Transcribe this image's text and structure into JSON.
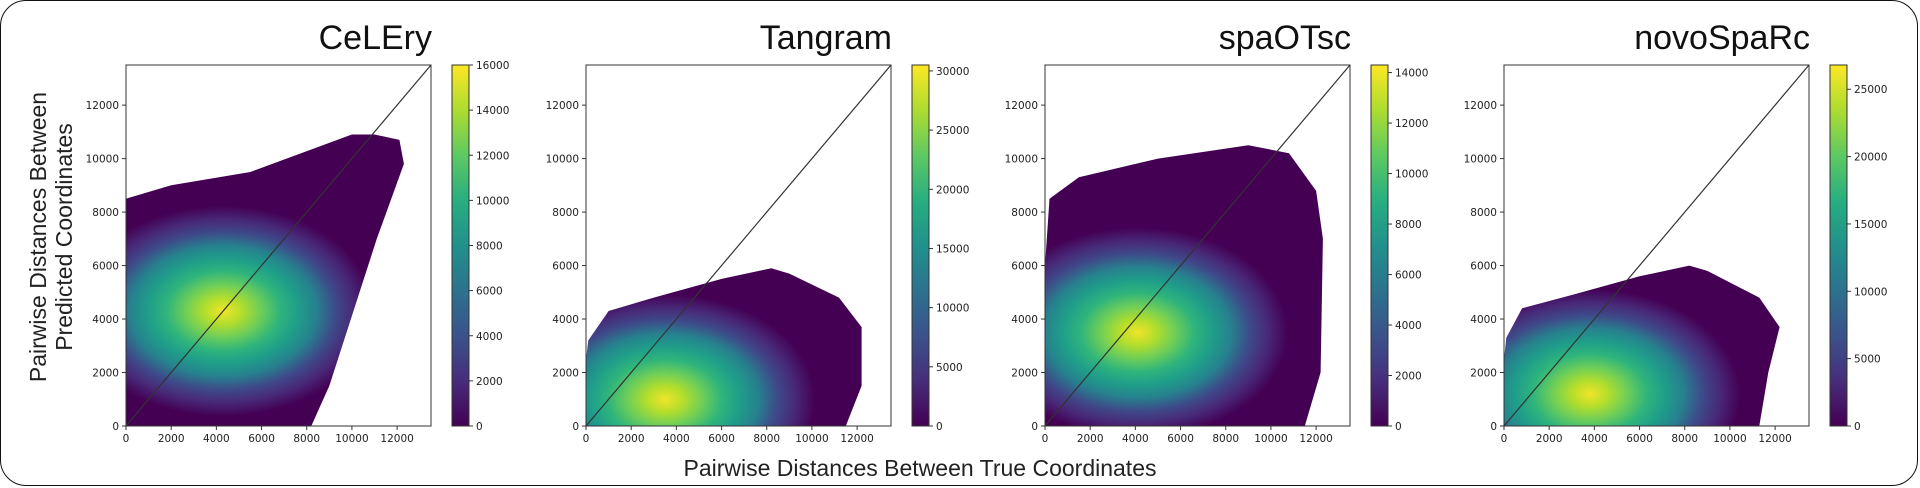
{
  "figure": {
    "xlabel": "Pairwise Distances Between True Coordinates",
    "ylabel_line1": "Pairwise Distances Between",
    "ylabel_line2": "Predicted Coordinates"
  },
  "chart_data": [
    {
      "type": "heatmap",
      "title": "CeLEry",
      "xlim": [
        0,
        13500
      ],
      "ylim": [
        0,
        13500
      ],
      "xticks": [
        0,
        2000,
        4000,
        6000,
        8000,
        10000,
        12000
      ],
      "yticks": [
        0,
        2000,
        4000,
        6000,
        8000,
        10000,
        12000
      ],
      "identity_line": true,
      "colorbar": {
        "min": 0,
        "max": 16000,
        "ticks": [
          0,
          2000,
          4000,
          6000,
          8000,
          10000,
          12000,
          14000,
          16000
        ]
      },
      "density_peak": {
        "x": 4300,
        "y": 4300
      },
      "support_outline": [
        [
          0,
          0
        ],
        [
          500,
          0
        ],
        [
          8200,
          0
        ],
        [
          9000,
          1500
        ],
        [
          11100,
          7000
        ],
        [
          12300,
          9800
        ],
        [
          12100,
          10700
        ],
        [
          11000,
          10900
        ],
        [
          10000,
          10900
        ],
        [
          5500,
          9500
        ],
        [
          2000,
          9000
        ],
        [
          0,
          8500
        ],
        [
          0,
          4500
        ]
      ]
    },
    {
      "type": "heatmap",
      "title": "Tangram",
      "xlim": [
        0,
        13500
      ],
      "ylim": [
        0,
        13500
      ],
      "xticks": [
        0,
        2000,
        4000,
        6000,
        8000,
        10000,
        12000
      ],
      "yticks": [
        0,
        2000,
        4000,
        6000,
        8000,
        10000,
        12000
      ],
      "identity_line": true,
      "colorbar": {
        "min": 0,
        "max": 30500,
        "ticks": [
          0,
          5000,
          10000,
          15000,
          20000,
          25000,
          30000
        ]
      },
      "density_peak": {
        "x": 3500,
        "y": 1000
      },
      "support_outline": [
        [
          0,
          0
        ],
        [
          11500,
          0
        ],
        [
          12200,
          1500
        ],
        [
          12200,
          3700
        ],
        [
          11200,
          4800
        ],
        [
          9000,
          5700
        ],
        [
          8200,
          5900
        ],
        [
          6000,
          5500
        ],
        [
          3000,
          4800
        ],
        [
          1000,
          4300
        ],
        [
          100,
          3200
        ],
        [
          0,
          2500
        ]
      ]
    },
    {
      "type": "heatmap",
      "title": "spaOTsc",
      "xlim": [
        0,
        13500
      ],
      "ylim": [
        0,
        13500
      ],
      "xticks": [
        0,
        2000,
        4000,
        6000,
        8000,
        10000,
        12000
      ],
      "yticks": [
        0,
        2000,
        4000,
        6000,
        8000,
        10000,
        12000
      ],
      "identity_line": true,
      "colorbar": {
        "min": 0,
        "max": 14300,
        "ticks": [
          0,
          2000,
          4000,
          6000,
          8000,
          10000,
          12000,
          14000
        ]
      },
      "density_peak": {
        "x": 4100,
        "y": 3500
      },
      "support_outline": [
        [
          0,
          0
        ],
        [
          11500,
          0
        ],
        [
          12200,
          2000
        ],
        [
          12300,
          7000
        ],
        [
          12000,
          8800
        ],
        [
          10800,
          10200
        ],
        [
          9000,
          10500
        ],
        [
          5000,
          10000
        ],
        [
          1500,
          9300
        ],
        [
          200,
          8500
        ],
        [
          0,
          6000
        ]
      ]
    },
    {
      "type": "heatmap",
      "title": "novoSpaRc",
      "xlim": [
        0,
        13500
      ],
      "ylim": [
        0,
        13500
      ],
      "xticks": [
        0,
        2000,
        4000,
        6000,
        8000,
        10000,
        12000
      ],
      "yticks": [
        0,
        2000,
        4000,
        6000,
        8000,
        10000,
        12000
      ],
      "identity_line": true,
      "colorbar": {
        "min": 0,
        "max": 26800,
        "ticks": [
          0,
          5000,
          10000,
          15000,
          20000,
          25000
        ]
      },
      "density_peak": {
        "x": 3800,
        "y": 1200
      },
      "support_outline": [
        [
          0,
          0
        ],
        [
          11300,
          0
        ],
        [
          11700,
          2000
        ],
        [
          12200,
          3700
        ],
        [
          11300,
          4800
        ],
        [
          9000,
          5800
        ],
        [
          8200,
          6000
        ],
        [
          6000,
          5600
        ],
        [
          3000,
          4900
        ],
        [
          800,
          4400
        ],
        [
          100,
          3300
        ],
        [
          0,
          2500
        ]
      ]
    }
  ]
}
